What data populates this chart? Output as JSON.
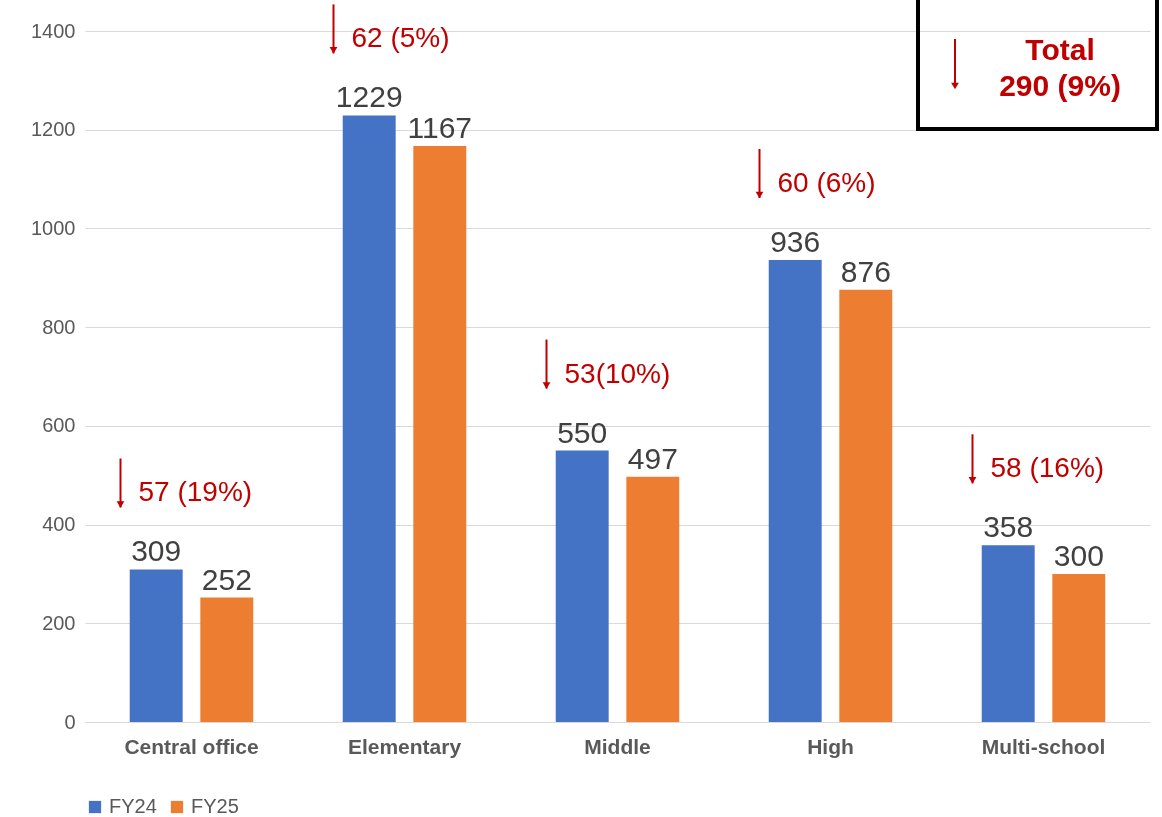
{
  "chart_data": {
    "type": "bar",
    "categories": [
      "Central office",
      "Elementary",
      "Middle",
      "High",
      "Multi-school"
    ],
    "series": [
      {
        "name": "FY24",
        "color": "#4472c4",
        "values": [
          309,
          1229,
          550,
          936,
          358
        ]
      },
      {
        "name": "FY25",
        "color": "#ed7d31",
        "values": [
          252,
          1167,
          497,
          876,
          300
        ]
      }
    ],
    "ylim": [
      0,
      1400
    ],
    "yticks": [
      0,
      200,
      400,
      600,
      800,
      1000,
      1200,
      1400
    ],
    "grid": "y",
    "legend": "bottom",
    "data_labels": true,
    "annotations": [
      "57 (19%)",
      "62 (5%)",
      "53(10%)",
      "60 (6%)",
      "58 (16%)",
      "Total\n290 (9%)"
    ]
  }
}
